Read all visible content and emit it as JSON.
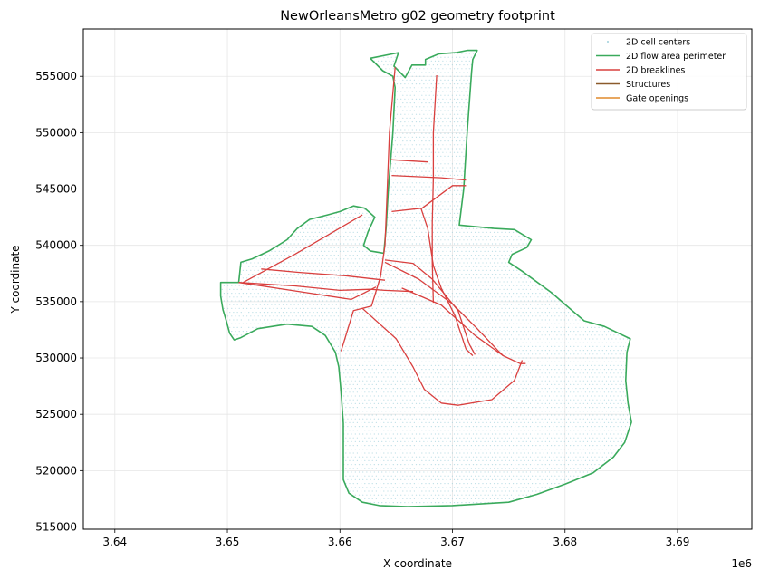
{
  "chart_data": {
    "type": "line",
    "title": "NewOrleansMetro g02 geometry footprint",
    "xlabel": "X coordinate",
    "ylabel": "Y coordinate",
    "x_offset_label": "1e6",
    "xlim": [
      3.6372,
      3.6966
    ],
    "ylim": [
      514800,
      559200
    ],
    "x_ticks": [
      {
        "value": 3.64,
        "label": "3.64"
      },
      {
        "value": 3.65,
        "label": "3.65"
      },
      {
        "value": 3.66,
        "label": "3.66"
      },
      {
        "value": 3.67,
        "label": "3.67"
      },
      {
        "value": 3.68,
        "label": "3.68"
      },
      {
        "value": 3.69,
        "label": "3.69"
      }
    ],
    "y_ticks": [
      {
        "value": 515000,
        "label": "515000"
      },
      {
        "value": 520000,
        "label": "520000"
      },
      {
        "value": 525000,
        "label": "525000"
      },
      {
        "value": 530000,
        "label": "530000"
      },
      {
        "value": 535000,
        "label": "535000"
      },
      {
        "value": 540000,
        "label": "540000"
      },
      {
        "value": 545000,
        "label": "545000"
      },
      {
        "value": 550000,
        "label": "550000"
      },
      {
        "value": 555000,
        "label": "555000"
      }
    ],
    "grid": true,
    "legend_position": "top-right",
    "colors": {
      "cells": "#9fd0dc",
      "perimeter": "#3aaa5c",
      "breaklines": "#d9403f",
      "structures": "#8b5a2b",
      "gates": "#e08a2c"
    },
    "legend": [
      {
        "label": "2D cell centers",
        "kind": "points",
        "color": "#9fd0dc"
      },
      {
        "label": "2D flow area perimeter",
        "kind": "line",
        "color": "#3aaa5c"
      },
      {
        "label": "2D breaklines",
        "kind": "line",
        "color": "#d9403f"
      },
      {
        "label": "Structures",
        "kind": "line",
        "color": "#8b5a2b"
      },
      {
        "label": "Gate openings",
        "kind": "line",
        "color": "#e08a2c"
      }
    ],
    "series": [
      {
        "name": "2D flow area perimeter",
        "points": [
          [
            3.6627,
            556600
          ],
          [
            3.6652,
            557100
          ],
          [
            3.6648,
            555900
          ],
          [
            3.6658,
            554900
          ],
          [
            3.6664,
            556000
          ],
          [
            3.6676,
            556000
          ],
          [
            3.6676,
            556500
          ],
          [
            3.6688,
            557000
          ],
          [
            3.6703,
            557100
          ],
          [
            3.6713,
            557300
          ],
          [
            3.6722,
            557300
          ],
          [
            3.6718,
            556500
          ],
          [
            3.6717,
            555400
          ],
          [
            3.6713,
            550000
          ],
          [
            3.671,
            545000
          ],
          [
            3.6706,
            541800
          ],
          [
            3.6737,
            541500
          ],
          [
            3.6755,
            541400
          ],
          [
            3.677,
            540500
          ],
          [
            3.6766,
            539800
          ],
          [
            3.6753,
            539200
          ],
          [
            3.675,
            538500
          ],
          [
            3.6762,
            537700
          ],
          [
            3.6788,
            535800
          ],
          [
            3.6803,
            534500
          ],
          [
            3.6817,
            533300
          ],
          [
            3.6835,
            532800
          ],
          [
            3.6858,
            531700
          ],
          [
            3.6855,
            530500
          ],
          [
            3.6854,
            528000
          ],
          [
            3.6856,
            526000
          ],
          [
            3.6859,
            524300
          ],
          [
            3.6853,
            522500
          ],
          [
            3.6843,
            521200
          ],
          [
            3.6825,
            519800
          ],
          [
            3.68,
            518800
          ],
          [
            3.6775,
            517900
          ],
          [
            3.675,
            517200
          ],
          [
            3.67,
            516900
          ],
          [
            3.666,
            516800
          ],
          [
            3.6635,
            516900
          ],
          [
            3.662,
            517200
          ],
          [
            3.6608,
            518000
          ],
          [
            3.6603,
            519200
          ],
          [
            3.6603,
            524200
          ],
          [
            3.6601,
            527000
          ],
          [
            3.6599,
            529200
          ],
          [
            3.6596,
            530500
          ],
          [
            3.6587,
            532000
          ],
          [
            3.6575,
            532800
          ],
          [
            3.6553,
            533000
          ],
          [
            3.6527,
            532600
          ],
          [
            3.6512,
            531800
          ],
          [
            3.6506,
            531600
          ],
          [
            3.6502,
            532200
          ],
          [
            3.6499,
            533300
          ],
          [
            3.6496,
            534300
          ],
          [
            3.6494,
            535500
          ],
          [
            3.6494,
            536700
          ],
          [
            3.651,
            536700
          ],
          [
            3.6512,
            538500
          ],
          [
            3.6522,
            538800
          ],
          [
            3.6537,
            539500
          ],
          [
            3.6553,
            540500
          ],
          [
            3.6562,
            541500
          ],
          [
            3.6573,
            542300
          ],
          [
            3.6589,
            542700
          ],
          [
            3.66,
            543000
          ],
          [
            3.6612,
            543500
          ],
          [
            3.6622,
            543300
          ],
          [
            3.6631,
            542500
          ],
          [
            3.6625,
            541200
          ],
          [
            3.6621,
            540000
          ],
          [
            3.6627,
            539500
          ],
          [
            3.6639,
            539300
          ],
          [
            3.6641,
            541500
          ],
          [
            3.6643,
            545000
          ],
          [
            3.6647,
            550000
          ],
          [
            3.6649,
            554000
          ],
          [
            3.6647,
            555000
          ],
          [
            3.6638,
            555500
          ],
          [
            3.6627,
            556600
          ]
        ]
      }
    ],
    "breaklines": [
      [
        [
          3.6649,
          555800
        ],
        [
          3.6644,
          550000
        ],
        [
          3.6642,
          545000
        ],
        [
          3.664,
          540000
        ],
        [
          3.6636,
          537200
        ],
        [
          3.6628,
          534600
        ],
        [
          3.6612,
          534200
        ],
        [
          3.6601,
          530600
        ]
      ],
      [
        [
          3.6686,
          555100
        ],
        [
          3.6683,
          550000
        ],
        [
          3.6683,
          546000
        ],
        [
          3.6682,
          542000
        ],
        [
          3.6682,
          538500
        ],
        [
          3.6683,
          534900
        ]
      ],
      [
        [
          3.6645,
          547600
        ],
        [
          3.6678,
          547400
        ]
      ],
      [
        [
          3.6646,
          546200
        ],
        [
          3.669,
          546000
        ],
        [
          3.6712,
          545800
        ]
      ],
      [
        [
          3.6646,
          543000
        ],
        [
          3.6673,
          543300
        ],
        [
          3.67,
          545300
        ],
        [
          3.6712,
          545300
        ]
      ],
      [
        [
          3.6672,
          543300
        ],
        [
          3.6678,
          541500
        ],
        [
          3.6683,
          538200
        ],
        [
          3.669,
          536200
        ],
        [
          3.6702,
          533800
        ],
        [
          3.6712,
          530800
        ],
        [
          3.6718,
          530200
        ]
      ],
      [
        [
          3.664,
          538700
        ],
        [
          3.6665,
          538400
        ],
        [
          3.6682,
          537000
        ],
        [
          3.6705,
          534200
        ],
        [
          3.6715,
          531200
        ],
        [
          3.672,
          530300
        ]
      ],
      [
        [
          3.664,
          538500
        ],
        [
          3.667,
          537000
        ],
        [
          3.67,
          534800
        ],
        [
          3.6722,
          532600
        ],
        [
          3.674,
          530700
        ],
        [
          3.6745,
          530200
        ]
      ],
      [
        [
          3.651,
          536700
        ],
        [
          3.656,
          536400
        ],
        [
          3.66,
          536000
        ],
        [
          3.6627,
          536100
        ],
        [
          3.664,
          536000
        ],
        [
          3.6665,
          535900
        ]
      ],
      [
        [
          3.651,
          536700
        ],
        [
          3.657,
          535800
        ],
        [
          3.661,
          535200
        ],
        [
          3.6632,
          536300
        ]
      ],
      [
        [
          3.653,
          537900
        ],
        [
          3.6563,
          537600
        ],
        [
          3.6605,
          537300
        ],
        [
          3.664,
          536900
        ]
      ],
      [
        [
          3.6514,
          536700
        ],
        [
          3.656,
          539200
        ],
        [
          3.662,
          542700
        ]
      ],
      [
        [
          3.6655,
          536200
        ],
        [
          3.669,
          534700
        ],
        [
          3.672,
          532000
        ],
        [
          3.6745,
          530200
        ],
        [
          3.676,
          529500
        ],
        [
          3.6765,
          529500
        ]
      ],
      [
        [
          3.662,
          534400
        ],
        [
          3.665,
          531700
        ],
        [
          3.6665,
          529200
        ],
        [
          3.6675,
          527200
        ],
        [
          3.669,
          526000
        ],
        [
          3.6705,
          525800
        ],
        [
          3.6735,
          526300
        ],
        [
          3.6755,
          528000
        ],
        [
          3.6762,
          529800
        ]
      ]
    ]
  }
}
